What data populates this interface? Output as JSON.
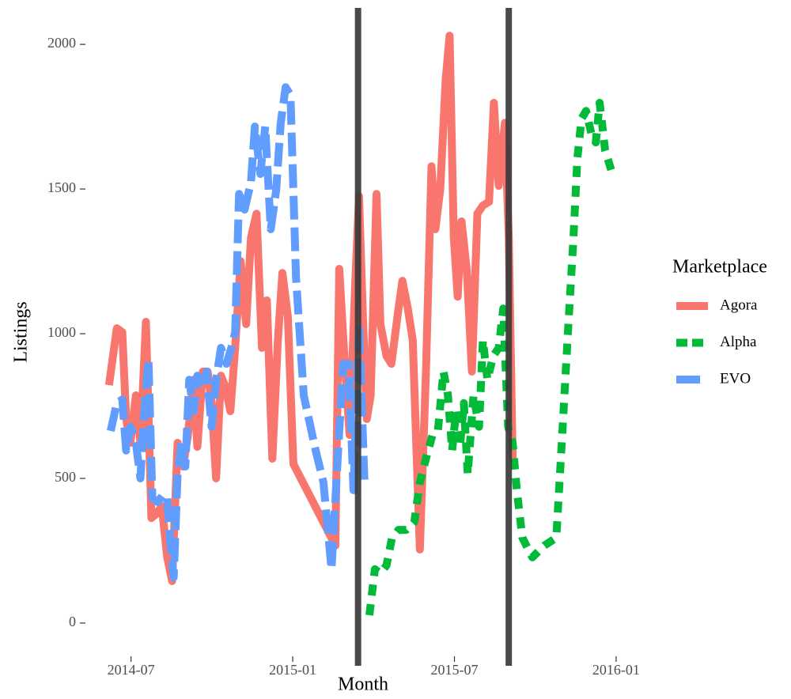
{
  "chart_data": {
    "type": "line",
    "x_label": "Month",
    "y_label": "Listings",
    "legend_title": "Marketplace",
    "xlim": [
      2014.359,
      2016.076
    ],
    "ylim": [
      -115,
      2126
    ],
    "xticks": [
      {
        "value": 2014.5,
        "label": "2014-07"
      },
      {
        "value": 2015.0,
        "label": "2015-01"
      },
      {
        "value": 2015.5,
        "label": "2015-07"
      },
      {
        "value": 2016.0,
        "label": "2016-01"
      }
    ],
    "yticks": [
      0,
      500,
      1000,
      1500,
      2000
    ],
    "vlines": [
      2015.202,
      2015.668
    ],
    "vline_color": "#3a3a3a",
    "series": [
      {
        "name": "Agora",
        "color": "#F8766D",
        "linetype": "solid",
        "x": [
          2014.432,
          2014.456,
          2014.473,
          2014.485,
          2014.498,
          2014.515,
          2014.529,
          2014.546,
          2014.563,
          2014.578,
          2014.595,
          2014.612,
          2014.627,
          2014.644,
          2014.661,
          2014.676,
          2014.693,
          2014.705,
          2014.722,
          2014.737,
          2014.749,
          2014.763,
          2014.778,
          2014.793,
          2014.807,
          2014.822,
          2014.839,
          2014.856,
          2014.871,
          2014.888,
          2014.905,
          2014.92,
          2014.937,
          2014.954,
          2014.968,
          2014.985,
          2015.002,
          2015.132,
          2015.144,
          2015.161,
          2015.176,
          2015.193,
          2015.205,
          2015.217,
          2015.229,
          2015.241,
          2015.259,
          2015.271,
          2015.29,
          2015.305,
          2015.327,
          2015.339,
          2015.356,
          2015.371,
          2015.393,
          2015.412,
          2015.429,
          2015.441,
          2015.456,
          2015.473,
          2015.485,
          2015.498,
          2015.51,
          2015.522,
          2015.539,
          2015.554,
          2015.571,
          2015.588,
          2015.607,
          2015.622,
          2015.637,
          2015.656,
          2015.668,
          2015.68
        ],
        "values": [
          822,
          1019,
          1005,
          705,
          623,
          787,
          623,
          1041,
          363,
          377,
          404,
          227,
          145,
          623,
          541,
          650,
          841,
          609,
          869,
          869,
          760,
          500,
          855,
          814,
          732,
          951,
          1251,
          1033,
          1333,
          1415,
          951,
          1115,
          568,
          978,
          1210,
          1060,
          550,
          268,
          1224,
          896,
          650,
          1169,
          1475,
          1060,
          705,
          787,
          1483,
          1033,
          923,
          896,
          1087,
          1183,
          1087,
          978,
          254,
          869,
          1579,
          1361,
          1497,
          1880,
          2030,
          1333,
          1128,
          1388,
          1210,
          869,
          1415,
          1443,
          1456,
          1798,
          1511,
          1729,
          1333,
          568
        ]
      },
      {
        "name": "Alpha",
        "color": "#00BA38",
        "linetype": "dashed",
        "x": [
          2015.237,
          2015.254,
          2015.271,
          2015.29,
          2015.307,
          2015.327,
          2015.351,
          2015.376,
          2015.393,
          2015.412,
          2015.432,
          2015.449,
          2015.466,
          2015.48,
          2015.493,
          2015.505,
          2015.517,
          2015.529,
          2015.541,
          2015.559,
          2015.576,
          2015.588,
          2015.602,
          2015.62,
          2015.637,
          2015.651,
          2015.666,
          2015.68,
          2015.693,
          2015.71,
          2015.741,
          2015.778,
          2015.815,
          2015.832,
          2015.851,
          2015.868,
          2015.88,
          2015.893,
          2015.907,
          2015.924,
          2015.937,
          2015.949,
          2015.966,
          2015.985
        ],
        "values": [
          27,
          186,
          172,
          199,
          295,
          322,
          322,
          350,
          486,
          568,
          650,
          664,
          869,
          787,
          596,
          732,
          609,
          760,
          514,
          787,
          678,
          978,
          841,
          923,
          951,
          1087,
          678,
          623,
          459,
          295,
          227,
          268,
          295,
          623,
          1005,
          1333,
          1606,
          1743,
          1770,
          1688,
          1661,
          1798,
          1634,
          1565
        ]
      },
      {
        "name": "EVO",
        "color": "#619CFF",
        "linetype": "longdash",
        "x": [
          2014.437,
          2014.456,
          2014.473,
          2014.485,
          2014.498,
          2014.515,
          2014.529,
          2014.541,
          2014.554,
          2014.566,
          2014.583,
          2014.6,
          2014.612,
          2014.62,
          2014.632,
          2014.644,
          2014.656,
          2014.668,
          2014.68,
          2014.693,
          2014.705,
          2014.722,
          2014.734,
          2014.749,
          2014.763,
          2014.778,
          2014.795,
          2014.81,
          2014.822,
          2014.834,
          2014.851,
          2014.871,
          2014.883,
          2014.9,
          2014.915,
          2014.932,
          2014.949,
          2014.963,
          2014.978,
          2014.993,
          2015.01,
          2015.034,
          2015.071,
          2015.095,
          2015.12,
          2015.139,
          2015.156,
          2015.173,
          2015.188,
          2015.205,
          2015.222
        ],
        "values": [
          664,
          760,
          773,
          596,
          678,
          623,
          500,
          732,
          910,
          432,
          418,
          445,
          432,
          295,
          158,
          514,
          623,
          541,
          841,
          732,
          855,
          814,
          869,
          678,
          841,
          951,
          896,
          951,
          1005,
          1483,
          1429,
          1524,
          1716,
          1552,
          1716,
          1361,
          1497,
          1729,
          1852,
          1825,
          1197,
          787,
          596,
          486,
          186,
          568,
          896,
          896,
          459,
          1033,
          486
        ]
      }
    ]
  }
}
